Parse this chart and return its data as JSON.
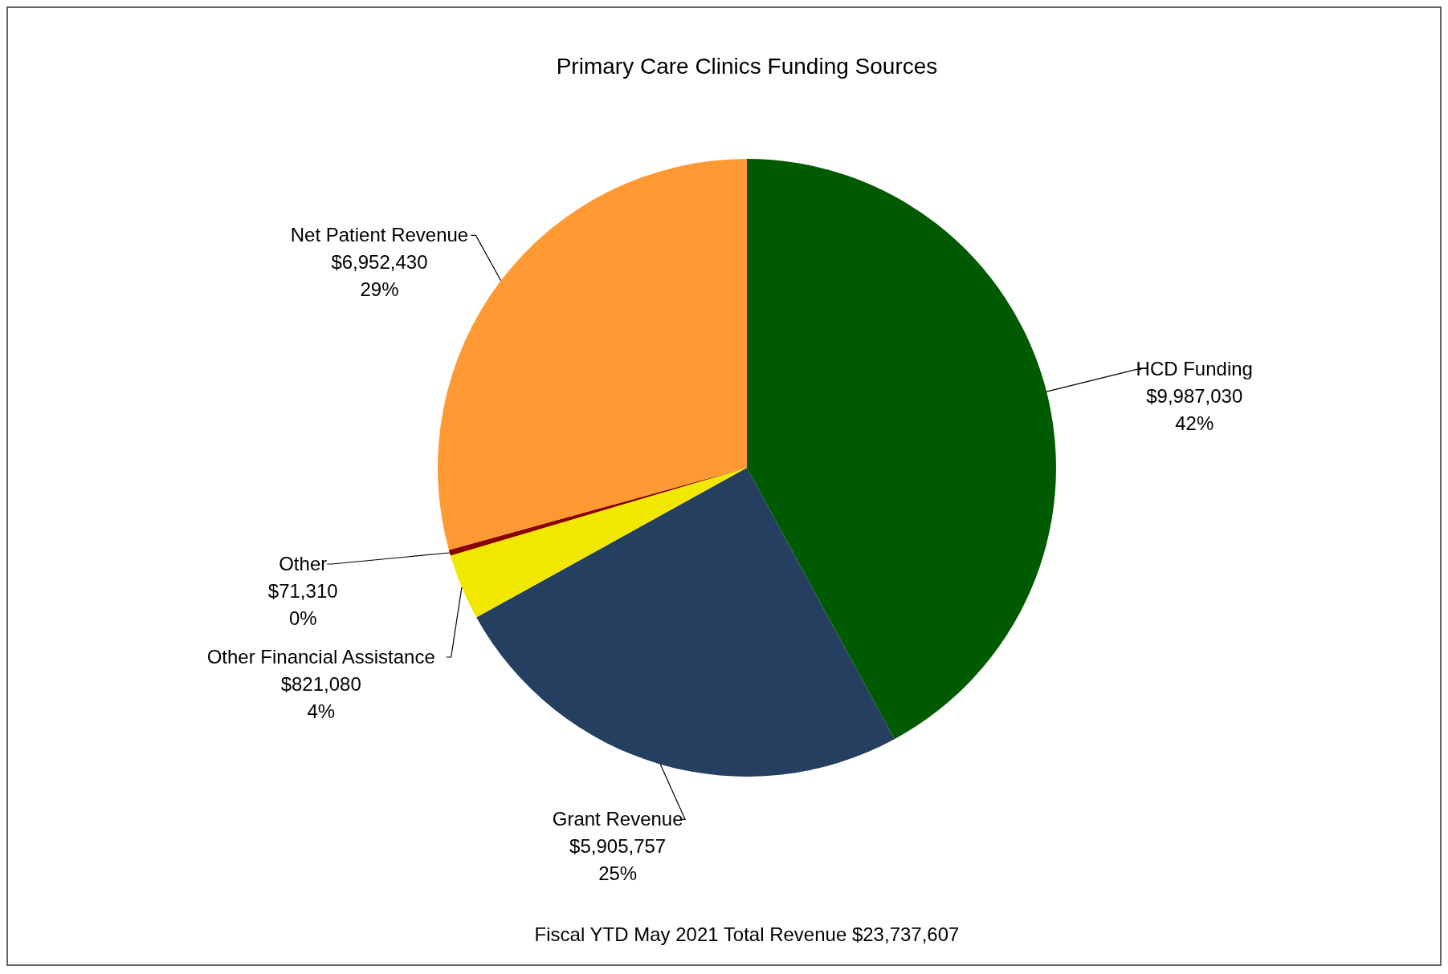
{
  "chart_data": {
    "type": "pie",
    "title": "Primary Care Clinics Funding Sources",
    "categories": [
      "HCD Funding",
      "Grant Revenue",
      "Other Financial Assistance",
      "Other",
      "Net Patient Revenue"
    ],
    "values": [
      9987030,
      5905757,
      821080,
      71310,
      6952430
    ],
    "colors": [
      "#005a00",
      "#253f60",
      "#f0e800",
      "#8b0000",
      "#ff9933"
    ],
    "value_labels": [
      "$9,987,030\n42%",
      "$5,905,757\n25%",
      "$821,080\n4%",
      "$71,310\n0%",
      "$6,952,430\n29%"
    ],
    "annotations": [
      "Fiscal YTD May 2021 Total Revenue $23,737,607"
    ]
  }
}
